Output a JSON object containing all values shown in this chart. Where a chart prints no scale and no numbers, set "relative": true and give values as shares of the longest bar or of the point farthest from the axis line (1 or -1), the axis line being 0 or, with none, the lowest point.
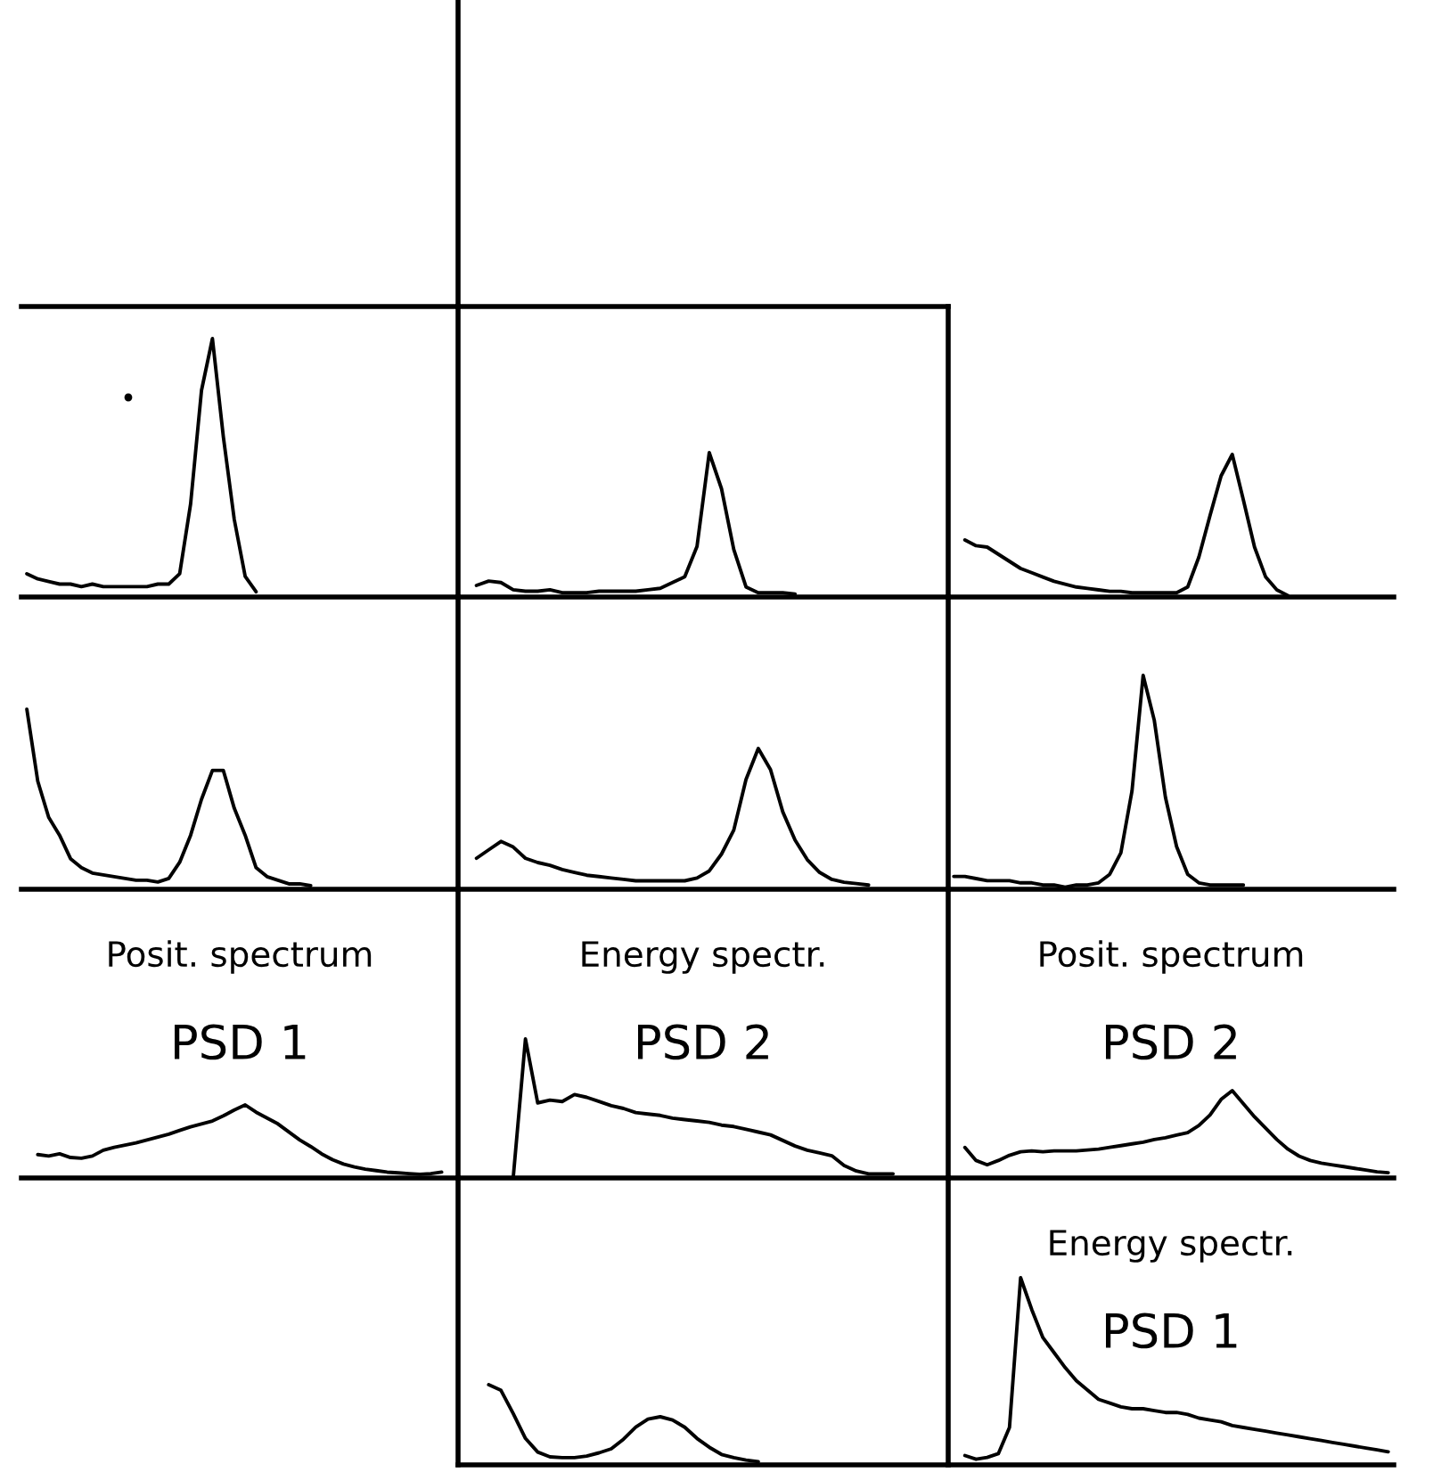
{
  "chart_data": [
    {
      "type": "line",
      "relative": true,
      "categories": [
        null,
        null,
        null,
        null,
        null,
        null,
        null,
        null,
        null,
        null,
        null,
        null,
        null,
        null,
        null,
        null,
        null,
        null,
        null,
        null,
        null,
        null,
        null,
        null,
        null,
        null,
        null,
        null,
        null,
        null,
        null,
        null,
        null,
        null,
        null,
        null,
        null,
        null,
        null,
        null
      ],
      "series": [
        {
          "color": "#000000",
          "values": [
            0.09,
            0.07,
            0.06,
            0.05,
            0.05,
            0.04,
            0.05,
            0.04,
            0.04,
            0.04,
            0.04,
            0.04,
            0.05,
            0.05,
            0.09,
            0.36,
            0.8,
            1.0,
            0.62,
            0.3,
            0.08,
            0.02,
            null,
            null,
            null,
            null,
            null,
            null,
            null,
            null,
            null,
            null,
            null,
            null,
            null,
            null,
            null,
            null,
            null,
            null
          ]
        }
      ]
    },
    {
      "type": "line",
      "relative": true,
      "categories": [
        null,
        null,
        null,
        null,
        null,
        null,
        null,
        null,
        null,
        null,
        null,
        null,
        null,
        null,
        null,
        null,
        null,
        null,
        null,
        null,
        null,
        null,
        null,
        null,
        null,
        null,
        null,
        null,
        null,
        null,
        null,
        null,
        null,
        null,
        null,
        null,
        null,
        null,
        null,
        null
      ],
      "series": [
        {
          "color": "#000000",
          "values": [
            null,
            0.08,
            0.11,
            0.1,
            0.05,
            0.04,
            0.04,
            0.05,
            0.03,
            0.03,
            0.03,
            0.04,
            0.04,
            0.04,
            0.04,
            0.05,
            0.06,
            0.1,
            0.14,
            0.35,
            1.0,
            0.75,
            0.33,
            0.07,
            0.03,
            0.03,
            0.03,
            0.02,
            null,
            null,
            null,
            null,
            null,
            null,
            null,
            null,
            null,
            null,
            null,
            null
          ]
        }
      ]
    },
    {
      "type": "line",
      "relative": true,
      "categories": [
        null,
        null,
        null,
        null,
        null,
        null,
        null,
        null,
        null,
        null,
        null,
        null,
        null,
        null,
        null,
        null,
        null,
        null,
        null,
        null,
        null,
        null,
        null,
        null,
        null,
        null,
        null,
        null,
        null,
        null,
        null,
        null,
        null,
        null,
        null,
        null,
        null,
        null,
        null,
        null
      ],
      "series": [
        {
          "color": "#000000",
          "values": [
            null,
            0.4,
            0.36,
            0.35,
            0.3,
            0.25,
            0.2,
            0.17,
            0.14,
            0.11,
            0.09,
            0.07,
            0.06,
            0.05,
            0.04,
            0.04,
            0.03,
            0.03,
            0.03,
            0.03,
            0.03,
            0.07,
            0.28,
            0.57,
            0.85,
            1.0,
            0.68,
            0.35,
            0.14,
            0.05,
            0.01,
            null,
            null,
            null,
            null,
            null,
            null,
            null,
            null,
            null
          ]
        }
      ]
    },
    {
      "type": "line",
      "relative": true,
      "categories": [
        null,
        null,
        null,
        null,
        null,
        null,
        null,
        null,
        null,
        null,
        null,
        null,
        null,
        null,
        null,
        null,
        null,
        null,
        null,
        null,
        null,
        null,
        null,
        null,
        null,
        null,
        null,
        null,
        null,
        null,
        null,
        null,
        null,
        null,
        null,
        null,
        null,
        null,
        null,
        null
      ],
      "series": [
        {
          "color": "#000000",
          "values": [
            1.0,
            0.6,
            0.4,
            0.3,
            0.17,
            0.12,
            0.09,
            0.08,
            0.07,
            0.06,
            0.05,
            0.05,
            0.04,
            0.06,
            0.15,
            0.3,
            0.5,
            0.66,
            0.66,
            0.45,
            0.3,
            0.12,
            0.07,
            0.05,
            0.03,
            0.03,
            0.02,
            null,
            null,
            null,
            null,
            null,
            null,
            null,
            null,
            null,
            null,
            null,
            null,
            null
          ]
        }
      ]
    },
    {
      "type": "line",
      "relative": true,
      "categories": [
        null,
        null,
        null,
        null,
        null,
        null,
        null,
        null,
        null,
        null,
        null,
        null,
        null,
        null,
        null,
        null,
        null,
        null,
        null,
        null,
        null,
        null,
        null,
        null,
        null,
        null,
        null,
        null,
        null,
        null,
        null,
        null,
        null,
        null,
        null,
        null,
        null,
        null,
        null,
        null
      ],
      "series": [
        {
          "color": "#000000",
          "values": [
            null,
            0.22,
            0.28,
            0.34,
            0.3,
            0.22,
            0.19,
            0.17,
            0.14,
            0.12,
            0.1,
            0.09,
            0.08,
            0.07,
            0.06,
            0.06,
            0.06,
            0.06,
            0.06,
            0.08,
            0.13,
            0.25,
            0.42,
            0.78,
            1.0,
            0.85,
            0.55,
            0.35,
            0.21,
            0.12,
            0.07,
            0.05,
            0.04,
            0.03,
            null,
            null,
            null,
            null,
            null,
            null
          ]
        }
      ]
    },
    {
      "type": "line",
      "relative": true,
      "categories": [
        null,
        null,
        null,
        null,
        null,
        null,
        null,
        null,
        null,
        null,
        null,
        null,
        null,
        null,
        null,
        null,
        null,
        null,
        null,
        null,
        null,
        null,
        null,
        null,
        null,
        null,
        null,
        null,
        null,
        null,
        null,
        null,
        null,
        null,
        null,
        null,
        null,
        null,
        null,
        null
      ],
      "series": [
        {
          "color": "#000000",
          "values": [
            0.06,
            0.06,
            0.05,
            0.04,
            0.04,
            0.04,
            0.03,
            0.03,
            0.02,
            0.02,
            0.01,
            0.02,
            0.02,
            0.03,
            0.07,
            0.17,
            0.46,
            1.0,
            0.79,
            0.43,
            0.2,
            0.07,
            0.03,
            0.02,
            0.02,
            0.02,
            0.02,
            null,
            null,
            null,
            null,
            null,
            null,
            null,
            null,
            null,
            null,
            null,
            null,
            null
          ]
        }
      ]
    },
    {
      "type": "line",
      "relative": true,
      "title": "Posit. spectrum",
      "subtitle": "PSD 1",
      "categories": [
        null,
        null,
        null,
        null,
        null,
        null,
        null,
        null,
        null,
        null,
        null,
        null,
        null,
        null,
        null,
        null,
        null,
        null,
        null,
        null,
        null,
        null,
        null,
        null,
        null,
        null,
        null,
        null,
        null,
        null,
        null,
        null,
        null,
        null,
        null,
        null,
        null,
        null,
        null,
        null
      ],
      "series": [
        {
          "color": "#000000",
          "values": [
            null,
            0.32,
            0.3,
            0.33,
            0.28,
            0.27,
            0.3,
            0.38,
            0.42,
            0.45,
            0.48,
            0.52,
            0.56,
            0.6,
            0.65,
            0.7,
            0.74,
            0.78,
            0.85,
            0.93,
            1.0,
            0.9,
            0.82,
            0.74,
            0.63,
            0.52,
            0.43,
            0.33,
            0.25,
            0.19,
            0.15,
            0.12,
            0.1,
            0.08,
            0.07,
            0.06,
            0.05,
            0.06,
            0.08,
            null
          ]
        }
      ]
    },
    {
      "type": "line",
      "relative": true,
      "title": "Energy spectr.",
      "subtitle": "PSD 2",
      "categories": [
        null,
        null,
        null,
        null,
        null,
        null,
        null,
        null,
        null,
        null,
        null,
        null,
        null,
        null,
        null,
        null,
        null,
        null,
        null,
        null,
        null,
        null,
        null,
        null,
        null,
        null,
        null,
        null,
        null,
        null,
        null,
        null,
        null,
        null,
        null,
        null,
        null,
        null,
        null,
        null
      ],
      "series": [
        {
          "color": "#000000",
          "values": [
            null,
            null,
            null,
            null,
            0.0,
            1.0,
            0.54,
            0.56,
            0.55,
            0.6,
            0.58,
            0.55,
            0.52,
            0.5,
            0.47,
            0.46,
            0.45,
            0.43,
            0.42,
            0.41,
            0.4,
            0.38,
            0.37,
            0.35,
            0.33,
            0.31,
            0.27,
            0.23,
            0.2,
            0.18,
            0.16,
            0.09,
            0.05,
            0.03,
            0.03,
            0.03,
            null,
            null,
            null,
            null
          ]
        }
      ]
    },
    {
      "type": "line",
      "relative": true,
      "title": "Posit. spectrum",
      "subtitle": "PSD 2",
      "categories": [
        null,
        null,
        null,
        null,
        null,
        null,
        null,
        null,
        null,
        null,
        null,
        null,
        null,
        null,
        null,
        null,
        null,
        null,
        null,
        null,
        null,
        null,
        null,
        null,
        null,
        null,
        null,
        null,
        null,
        null,
        null,
        null,
        null,
        null,
        null,
        null,
        null,
        null,
        null,
        null
      ],
      "series": [
        {
          "color": "#000000",
          "values": [
            null,
            0.35,
            0.2,
            0.15,
            0.2,
            0.26,
            0.3,
            0.31,
            0.3,
            0.31,
            0.31,
            0.31,
            0.32,
            0.33,
            0.35,
            0.37,
            0.39,
            0.41,
            0.44,
            0.46,
            0.49,
            0.52,
            0.6,
            0.72,
            0.9,
            1.0,
            0.85,
            0.7,
            0.57,
            0.44,
            0.33,
            0.25,
            0.2,
            0.17,
            0.15,
            0.13,
            0.11,
            0.09,
            0.07,
            0.06
          ]
        }
      ]
    },
    {
      "type": "line",
      "relative": true,
      "categories": [
        null,
        null,
        null,
        null,
        null,
        null,
        null,
        null,
        null,
        null,
        null,
        null,
        null,
        null,
        null,
        null,
        null,
        null,
        null,
        null,
        null,
        null,
        null,
        null,
        null,
        null,
        null,
        null,
        null,
        null,
        null,
        null,
        null,
        null,
        null,
        null,
        null,
        null,
        null,
        null
      ],
      "series": [
        {
          "color": "#000000",
          "values": [
            null,
            null,
            1.0,
            0.93,
            0.64,
            0.33,
            0.16,
            0.1,
            0.09,
            0.09,
            0.11,
            0.15,
            0.2,
            0.32,
            0.47,
            0.57,
            0.6,
            0.56,
            0.47,
            0.33,
            0.22,
            0.13,
            0.09,
            0.06,
            0.04,
            null,
            null,
            null,
            null,
            null,
            null,
            null,
            null,
            null,
            null,
            null,
            null,
            null,
            null,
            null
          ]
        }
      ]
    },
    {
      "type": "line",
      "relative": true,
      "title": "Energy spectr.",
      "subtitle": "PSD 1",
      "categories": [
        null,
        null,
        null,
        null,
        null,
        null,
        null,
        null,
        null,
        null,
        null,
        null,
        null,
        null,
        null,
        null,
        null,
        null,
        null,
        null,
        null,
        null,
        null,
        null,
        null,
        null,
        null,
        null,
        null,
        null,
        null,
        null,
        null,
        null,
        null,
        null,
        null,
        null,
        null,
        null
      ],
      "series": [
        {
          "color": "#000000",
          "values": [
            null,
            0.05,
            0.03,
            0.04,
            0.06,
            0.2,
            1.0,
            0.83,
            0.68,
            0.6,
            0.52,
            0.45,
            0.4,
            0.35,
            0.33,
            0.31,
            0.3,
            0.3,
            0.29,
            0.28,
            0.28,
            0.27,
            0.25,
            0.24,
            0.23,
            0.21,
            0.2,
            0.19,
            0.18,
            0.17,
            0.16,
            0.15,
            0.14,
            0.13,
            0.12,
            0.11,
            0.1,
            0.09,
            0.08,
            0.07
          ]
        }
      ]
    }
  ]
}
